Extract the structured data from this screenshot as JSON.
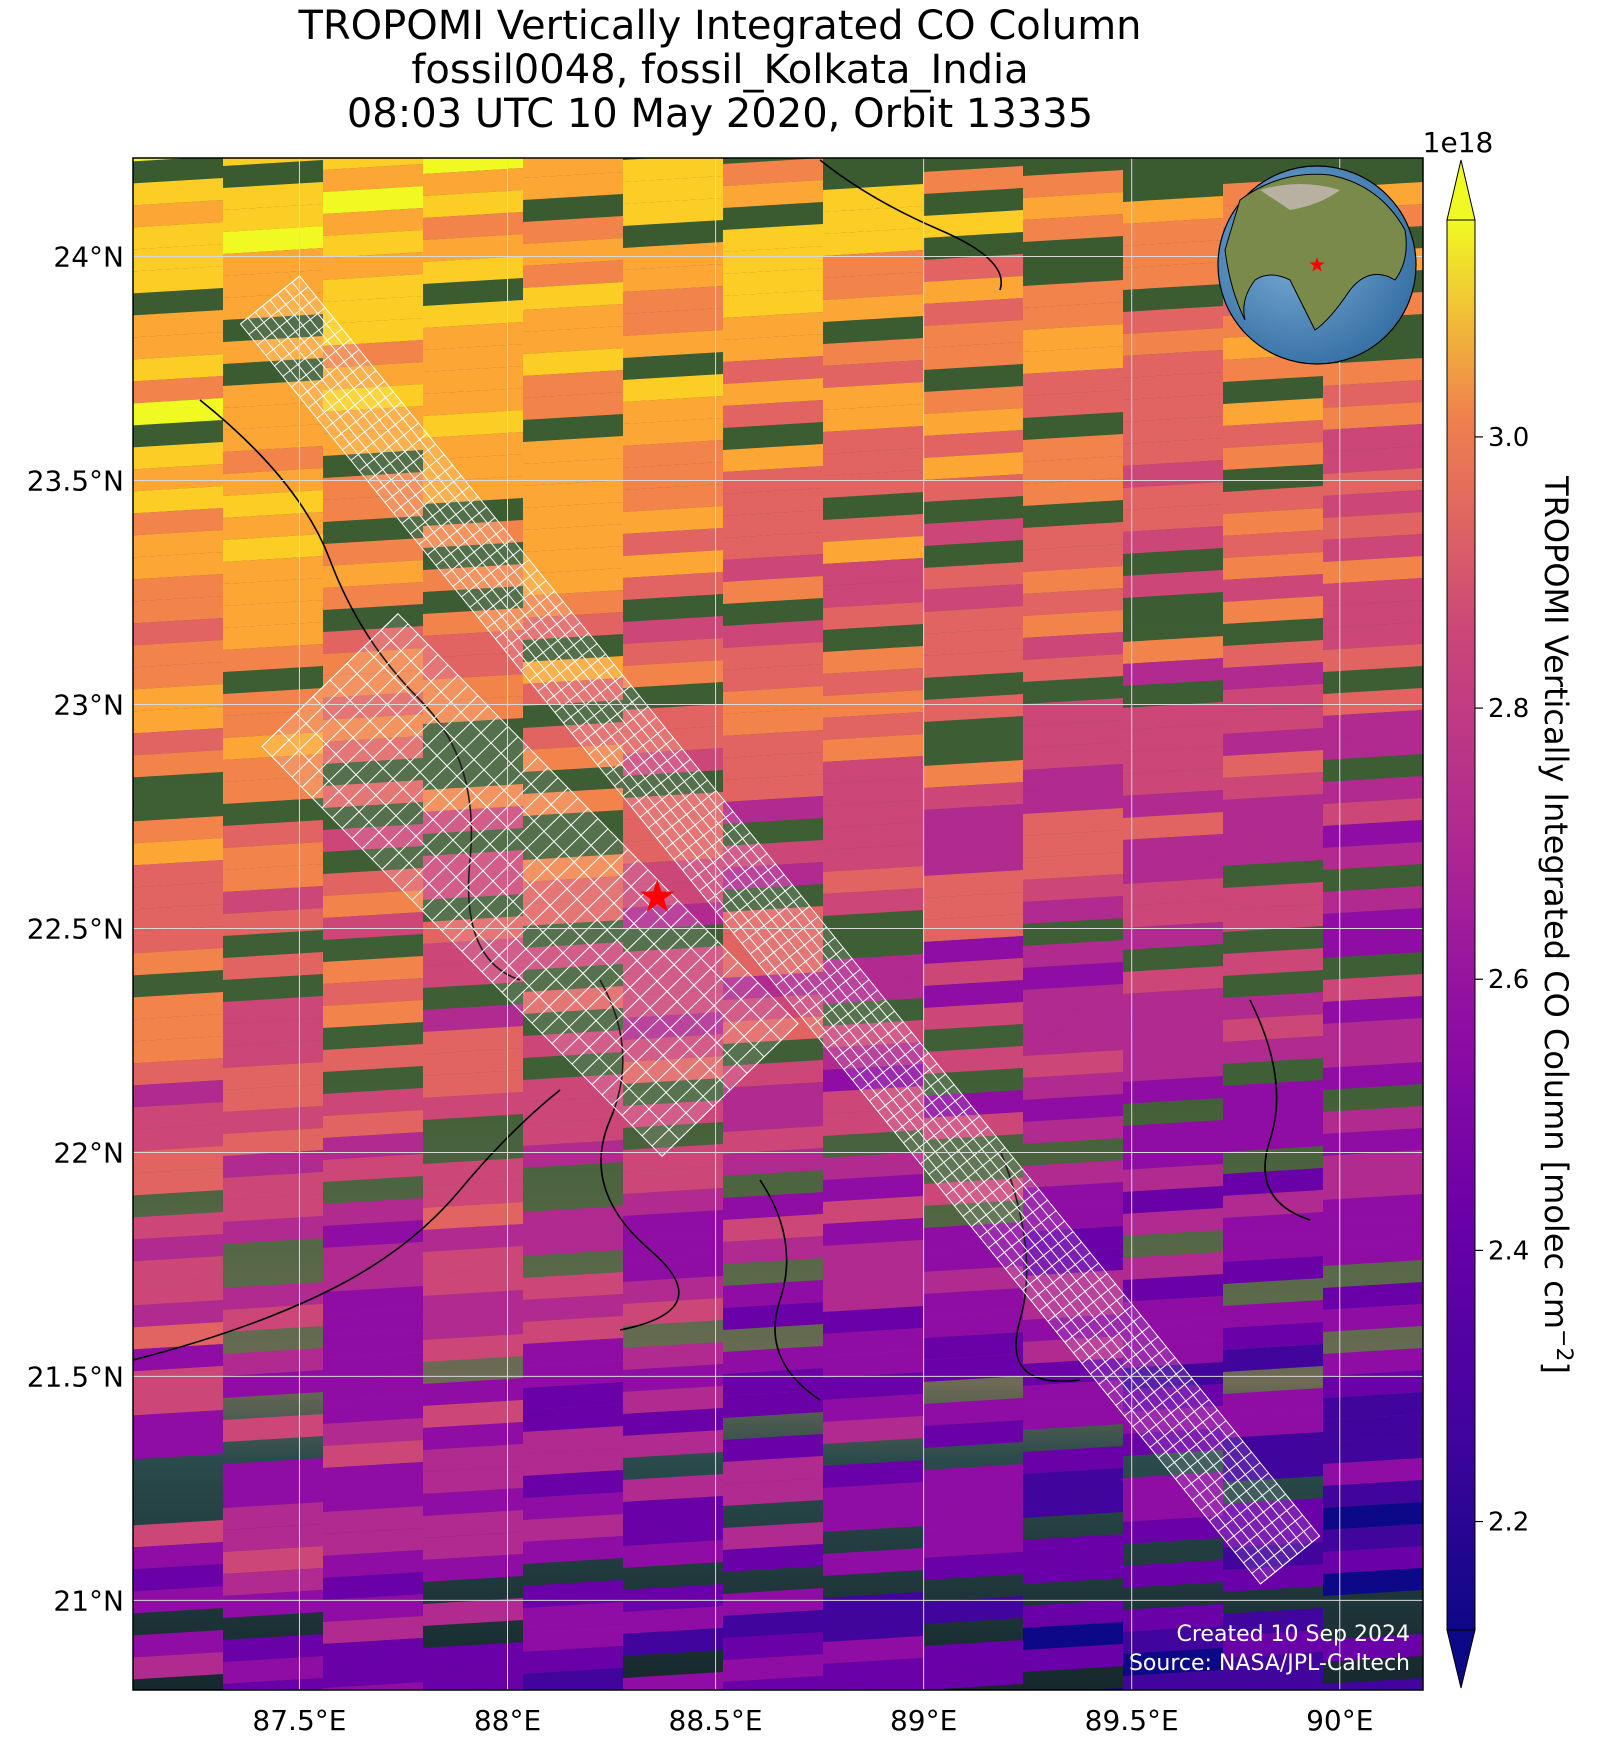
{
  "title": {
    "line1": "TROPOMI Vertically Integrated CO Column",
    "line2": "fossil0048, fossil_Kolkata_India",
    "line3": "08:03 UTC 10 May 2020, Orbit 13335"
  },
  "map": {
    "lon_range": [
      87.1,
      90.2
    ],
    "lat_range": [
      20.8,
      24.22
    ],
    "lon_ticks": [
      {
        "value": 87.5,
        "label": "87.5°E"
      },
      {
        "value": 88.0,
        "label": "88°E"
      },
      {
        "value": 88.5,
        "label": "88.5°E"
      },
      {
        "value": 89.0,
        "label": "89°E"
      },
      {
        "value": 89.5,
        "label": "89.5°E"
      },
      {
        "value": 90.0,
        "label": "90°E"
      }
    ],
    "lat_ticks": [
      {
        "value": 24.0,
        "label": "24°N"
      },
      {
        "value": 23.5,
        "label": "23.5°N"
      },
      {
        "value": 23.0,
        "label": "23°N"
      },
      {
        "value": 22.5,
        "label": "22.5°N"
      },
      {
        "value": 22.0,
        "label": "22°N"
      },
      {
        "value": 21.5,
        "label": "21.5°N"
      },
      {
        "value": 21.0,
        "label": "21°N"
      }
    ],
    "gridlines": true,
    "target": {
      "lon": 88.36,
      "lat": 22.57,
      "marker": "red-star"
    },
    "credit": {
      "created": "Created 10 Sep 2024",
      "source": "Source: NASA/JPL-Caltech"
    },
    "inset_globe": {
      "center_region": "South Asia",
      "marker": "red-star"
    }
  },
  "colorbar": {
    "title": "TROPOMI Vertically Integrated CO Column [molec cm",
    "title_sup": "−2",
    "title_end": "]",
    "multiplier": "1e18",
    "range": [
      2.12,
      3.16
    ],
    "ticks": [
      {
        "value": 2.2,
        "label": "2.2"
      },
      {
        "value": 2.4,
        "label": "2.4"
      },
      {
        "value": 2.6,
        "label": "2.6"
      },
      {
        "value": 2.8,
        "label": "2.8"
      },
      {
        "value": 3.0,
        "label": "3.0"
      }
    ],
    "colormap": "plasma",
    "extend": "both"
  },
  "colors": {
    "land": "#3d5a35",
    "water": "#1f3a44",
    "estuary": "#6e6a55",
    "target": "#ff0000",
    "gridline": "#d9d9d9",
    "target_footprint": "#ffffff"
  }
}
